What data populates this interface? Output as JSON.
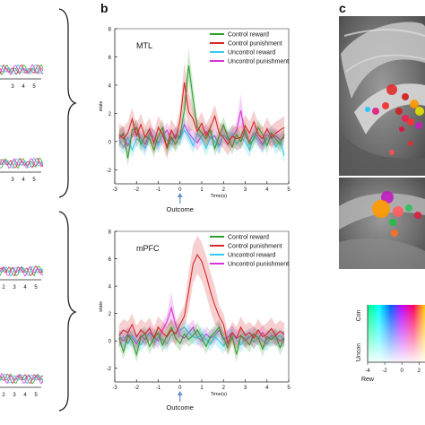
{
  "panels": {
    "b_letter": "b",
    "c_letter": "c"
  },
  "chart_data": [
    {
      "type": "line",
      "title": "MTL",
      "xlabel": "Time(s)",
      "ylabel": "stats",
      "xlim": [
        -3,
        5
      ],
      "ylim": [
        -3,
        8
      ],
      "xticks": [
        -3,
        -2,
        -1,
        0,
        1,
        2,
        3,
        4,
        5
      ],
      "yticks": [
        -2,
        0,
        2,
        4,
        6,
        8
      ],
      "annotation": "Outcome",
      "legend_position": "top-right",
      "x": [
        -2.8,
        -2.6,
        -2.4,
        -2.2,
        -2.0,
        -1.8,
        -1.6,
        -1.4,
        -1.2,
        -1.0,
        -0.8,
        -0.6,
        -0.4,
        -0.2,
        0.0,
        0.2,
        0.4,
        0.6,
        0.8,
        1.0,
        1.2,
        1.4,
        1.6,
        1.8,
        2.0,
        2.2,
        2.4,
        2.6,
        2.8,
        3.0,
        3.2,
        3.4,
        3.6,
        3.8,
        4.0,
        4.2,
        4.4,
        4.6,
        4.8
      ],
      "series": [
        {
          "name": "Control reward",
          "color": "#2ca02c",
          "values": [
            0.3,
            0.6,
            -1.2,
            0.8,
            1.0,
            -0.2,
            0.4,
            0.2,
            -0.6,
            0.4,
            1.0,
            -0.5,
            0.3,
            -0.2,
            0.4,
            2.2,
            5.4,
            3.0,
            1.0,
            0.6,
            0.2,
            0.8,
            -0.5,
            0.4,
            1.2,
            0.3,
            -0.4,
            0.5,
            0.0,
            0.8,
            -0.2,
            0.2,
            1.0,
            0.5,
            -0.3,
            0.6,
            0.2,
            -0.2,
            0.5
          ]
        },
        {
          "name": "Control punishment",
          "color": "#d62728",
          "values": [
            0.5,
            0.2,
            0.6,
            1.6,
            0.4,
            1.2,
            0.3,
            0.9,
            -0.1,
            1.0,
            0.5,
            -0.4,
            0.8,
            0.2,
            1.5,
            4.2,
            2.1,
            1.6,
            0.7,
            1.3,
            0.4,
            1.0,
            1.8,
            0.6,
            0.3,
            -0.2,
            0.4,
            0.2,
            0.3,
            1.1,
            0.6,
            1.4,
            0.5,
            0.2,
            0.9,
            0.3,
            0.6,
            0.8,
            1.0
          ]
        },
        {
          "name": "Uncontrol reward",
          "color": "#33ccee",
          "values": [
            0.1,
            -0.4,
            0.3,
            -0.6,
            0.2,
            0.0,
            -0.5,
            0.4,
            0.3,
            -0.3,
            0.5,
            0.1,
            -0.2,
            0.4,
            0.2,
            0.8,
            0.4,
            -0.3,
            0.6,
            0.2,
            -0.5,
            0.3,
            0.0,
            -0.4,
            0.5,
            0.2,
            0.6,
            -0.2,
            0.3,
            0.0,
            -0.6,
            0.4,
            0.1,
            -0.3,
            0.2,
            0.5,
            -0.4,
            0.1,
            -1.0
          ]
        },
        {
          "name": "Uncontrol punishment",
          "color": "#d633d6",
          "values": [
            0.2,
            0.5,
            -0.3,
            0.4,
            1.0,
            0.2,
            -0.2,
            0.6,
            0.3,
            -0.1,
            0.4,
            0.8,
            0.1,
            0.5,
            0.3,
            1.2,
            0.6,
            0.2,
            -0.1,
            0.4,
            0.7,
            0.2,
            0.4,
            -0.3,
            0.5,
            0.1,
            0.3,
            0.8,
            2.2,
            0.4,
            0.0,
            0.6,
            0.3,
            -0.2,
            0.5,
            0.2,
            0.4,
            0.1,
            0.3
          ]
        }
      ]
    },
    {
      "type": "line",
      "title": "mPFC",
      "xlabel": "Time(s)",
      "ylabel": "stats",
      "xlim": [
        -3,
        5
      ],
      "ylim": [
        -3,
        8
      ],
      "xticks": [
        -3,
        -2,
        -1,
        0,
        1,
        2,
        3,
        4,
        5
      ],
      "yticks": [
        -2,
        0,
        2,
        4,
        6,
        8
      ],
      "annotation": "Outcome",
      "legend_position": "top-right",
      "x": [
        -2.8,
        -2.6,
        -2.4,
        -2.2,
        -2.0,
        -1.8,
        -1.6,
        -1.4,
        -1.2,
        -1.0,
        -0.8,
        -0.6,
        -0.4,
        -0.2,
        0.0,
        0.2,
        0.4,
        0.6,
        0.8,
        1.0,
        1.2,
        1.4,
        1.6,
        1.8,
        2.0,
        2.2,
        2.4,
        2.6,
        2.8,
        3.0,
        3.2,
        3.4,
        3.6,
        3.8,
        4.0,
        4.2,
        4.4,
        4.6,
        4.8
      ],
      "series": [
        {
          "name": "Control reward",
          "color": "#2ca02c",
          "values": [
            0.2,
            -0.8,
            0.4,
            0.0,
            -1.0,
            0.3,
            0.5,
            -0.4,
            0.2,
            0.6,
            -0.3,
            0.4,
            1.0,
            0.2,
            -0.2,
            0.5,
            0.1,
            0.4,
            0.8,
            0.2,
            -0.4,
            0.3,
            0.6,
            1.0,
            0.2,
            -0.5,
            0.3,
            -1.0,
            0.4,
            0.1,
            -0.3,
            0.5,
            0.2,
            -0.6,
            0.3,
            0.1,
            0.4,
            -0.5,
            0.2
          ]
        },
        {
          "name": "Control punishment",
          "color": "#d62728",
          "values": [
            0.4,
            0.8,
            0.6,
            1.2,
            0.3,
            0.8,
            0.5,
            0.9,
            0.2,
            1.0,
            0.6,
            0.3,
            0.8,
            0.5,
            1.2,
            1.8,
            3.6,
            5.6,
            6.3,
            5.8,
            4.8,
            3.6,
            2.6,
            1.8,
            1.2,
            -0.2,
            0.6,
            0.2,
            1.0,
            0.4,
            0.6,
            0.2,
            0.8,
            0.3,
            0.5,
            0.9,
            0.4,
            0.7,
            0.5
          ]
        },
        {
          "name": "Uncontrol reward",
          "color": "#33ccee",
          "values": [
            0.1,
            0.3,
            -0.2,
            0.4,
            0.0,
            -0.3,
            0.2,
            0.5,
            -0.1,
            0.3,
            0.1,
            -0.2,
            0.4,
            0.6,
            0.8,
            1.0,
            0.6,
            0.3,
            0.2,
            0.5,
            0.1,
            -0.2,
            0.3,
            0.0,
            -0.4,
            0.2,
            0.5,
            0.1,
            -0.3,
            0.2,
            0.4,
            -0.1,
            0.3,
            0.0,
            -0.2,
            0.3,
            0.1,
            0.4,
            0.0
          ]
        },
        {
          "name": "Uncontrol punishment",
          "color": "#d633d6",
          "values": [
            0.3,
            0.0,
            0.5,
            0.2,
            -0.2,
            0.4,
            0.1,
            0.6,
            0.3,
            0.0,
            0.8,
            1.4,
            2.4,
            1.2,
            0.4,
            0.2,
            0.6,
            1.0,
            0.3,
            0.0,
            0.5,
            0.2,
            0.4,
            0.8,
            0.1,
            0.3,
            0.6,
            0.2,
            0.4,
            0.0,
            0.3,
            0.5,
            0.2,
            0.6,
            0.1,
            0.4,
            0.3,
            0.0,
            0.2
          ]
        }
      ]
    },
    {
      "type": "heatmap",
      "title": "",
      "ylabel_top": "Con",
      "ylabel_bottom": "Uncon",
      "xlabel": "Rew",
      "xticks": [
        -4,
        -2,
        0,
        2
      ]
    }
  ],
  "left_panel": {
    "xtick_rows": [
      [
        "3",
        "4",
        "5"
      ],
      [
        "3",
        "4",
        "5"
      ],
      [
        "2",
        "3",
        "4",
        "5"
      ],
      [
        "2",
        "3",
        "4",
        "5"
      ]
    ]
  }
}
